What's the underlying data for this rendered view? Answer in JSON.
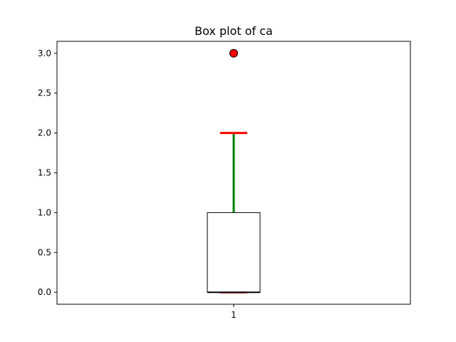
{
  "chart_data": {
    "type": "box",
    "title": "Box plot of ca",
    "xlabel": "",
    "ylabel": "",
    "categories": [
      "1"
    ],
    "ylim": [
      -0.15,
      3.15
    ],
    "yticks": [
      0.0,
      0.5,
      1.0,
      1.5,
      2.0,
      2.5,
      3.0
    ],
    "ytick_labels": [
      "0.0",
      "0.5",
      "1.0",
      "1.5",
      "2.0",
      "2.5",
      "3.0"
    ],
    "grid": false,
    "boxes": [
      {
        "category": "1",
        "whisker_low": 0.0,
        "q1": 0.0,
        "median": 0.0,
        "q3": 1.0,
        "whisker_high": 2.0,
        "outliers": [
          3.0
        ]
      }
    ],
    "colors": {
      "box_edge": "#000000",
      "box_fill": "#ffffff",
      "median": "#000000",
      "whisker": "#008000",
      "cap": "#ff0000",
      "outlier_fill": "#ff0000",
      "outlier_edge": "#000000"
    }
  }
}
